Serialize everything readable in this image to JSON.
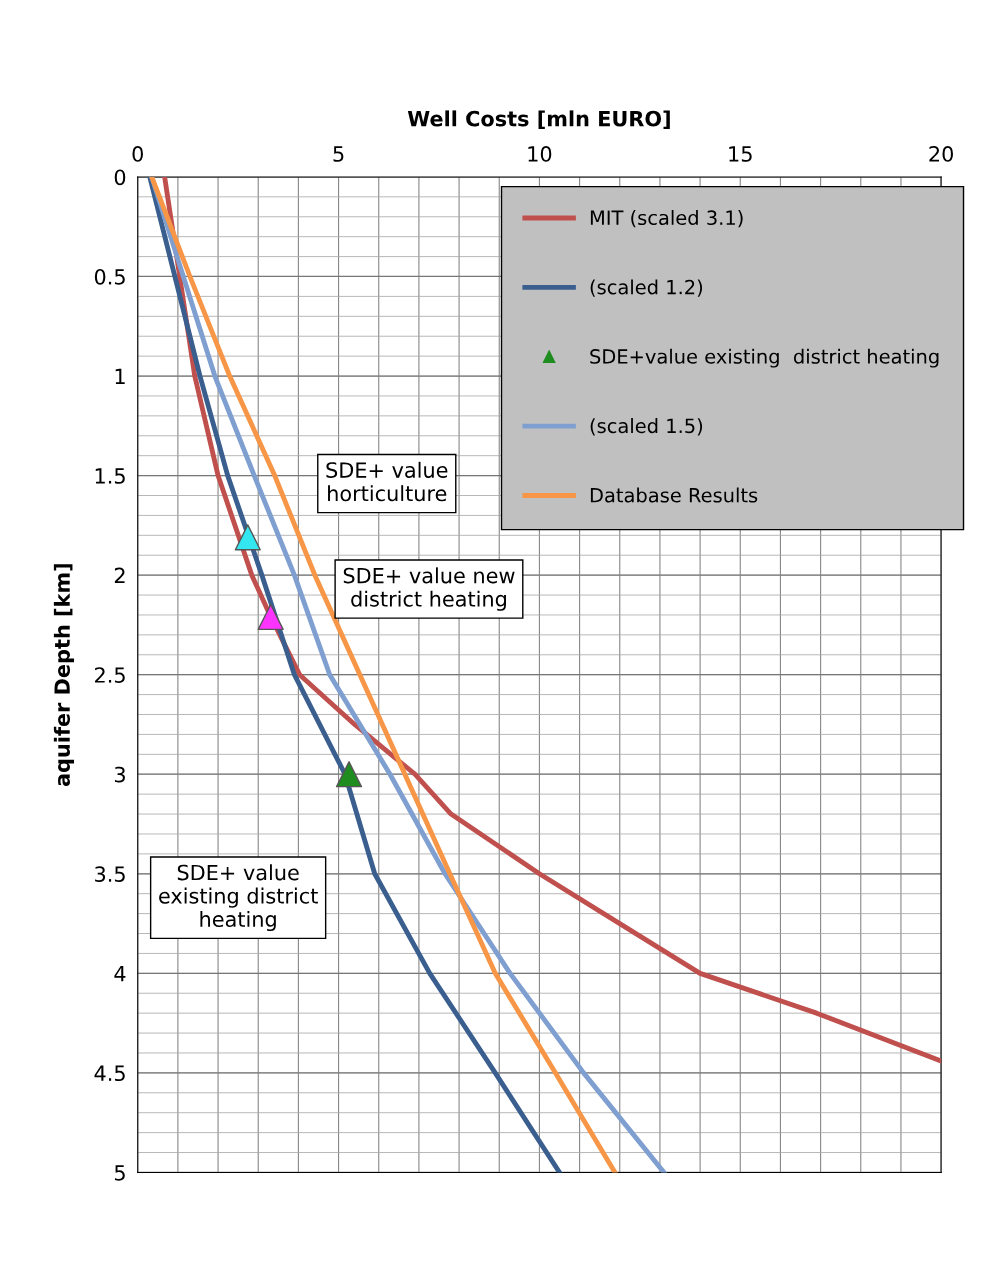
{
  "chart_data": {
    "type": "line",
    "xlabel": "Well Costs [mln EURO]",
    "ylabel": "aquifer Depth [km]",
    "xlim": [
      0,
      20
    ],
    "xticks": [
      0,
      5,
      10,
      15,
      20
    ],
    "ylim": [
      5,
      0
    ],
    "yticks": [
      0,
      0.5,
      1,
      1.5,
      2,
      2.5,
      3,
      3.5,
      4,
      4.5,
      5
    ],
    "grid": true,
    "legend": "top right",
    "marker": "none",
    "line_style": "solid",
    "series": [
      {
        "name": "MIT (scaled 3.1)",
        "color": "#c0504d",
        "x": [
          0.67,
          1.42,
          2.0,
          2.84,
          3.29,
          4.03,
          5.4,
          6.9,
          7.8,
          10.0,
          12.0,
          14.0,
          16.9,
          20.0
        ],
        "values": [
          0,
          1,
          1.5,
          2,
          2.2,
          2.5,
          2.75,
          3,
          3.2,
          3.5,
          3.75,
          4,
          4.2,
          4.44
        ]
      },
      {
        "name": "(scaled 1.2)",
        "color": "#3a5f8f",
        "x": [
          0.3,
          1.55,
          2.24,
          3.09,
          3.9,
          5.16,
          5.9,
          7.27,
          8.9,
          10.5
        ],
        "values": [
          0,
          1,
          1.5,
          2,
          2.5,
          3,
          3.5,
          4,
          4.5,
          5
        ]
      },
      {
        "name": "SDE+value existing  district heating",
        "type": "scatter",
        "marker": "triangle",
        "color": "#1e8c1e",
        "x": [
          5.26
        ],
        "values": [
          3.0
        ]
      },
      {
        "name": "(scaled 1.5)",
        "color": "#7f9fd0",
        "x": [
          0.35,
          1.92,
          2.9,
          3.9,
          4.78,
          6.28,
          7.65,
          9.27,
          11.1,
          13.1
        ],
        "values": [
          0,
          1,
          1.5,
          2,
          2.5,
          3,
          3.5,
          4,
          4.5,
          5
        ]
      },
      {
        "name": "Database Results",
        "color": "#f79646",
        "x": [
          0.35,
          1.3,
          2.29,
          3.41,
          4.41,
          5.53,
          6.65,
          7.77,
          8.9,
          10.4,
          11.88
        ],
        "values": [
          0,
          0.5,
          1,
          1.5,
          2,
          2.5,
          3,
          3.5,
          4,
          4.5,
          5
        ]
      },
      {
        "type": "scatter",
        "marker": "triangle",
        "color": "#33e6f0",
        "x": [
          2.74
        ],
        "values": [
          1.81
        ]
      },
      {
        "type": "scatter",
        "marker": "triangle",
        "color": "#ff33ff",
        "x": [
          3.31
        ],
        "values": [
          2.21
        ]
      }
    ],
    "annotations": [
      "SDE+ value\nhorticulture",
      "SDE+ value new\ndistrict heating",
      "SDE+ value\nexisting district\nheating"
    ]
  }
}
